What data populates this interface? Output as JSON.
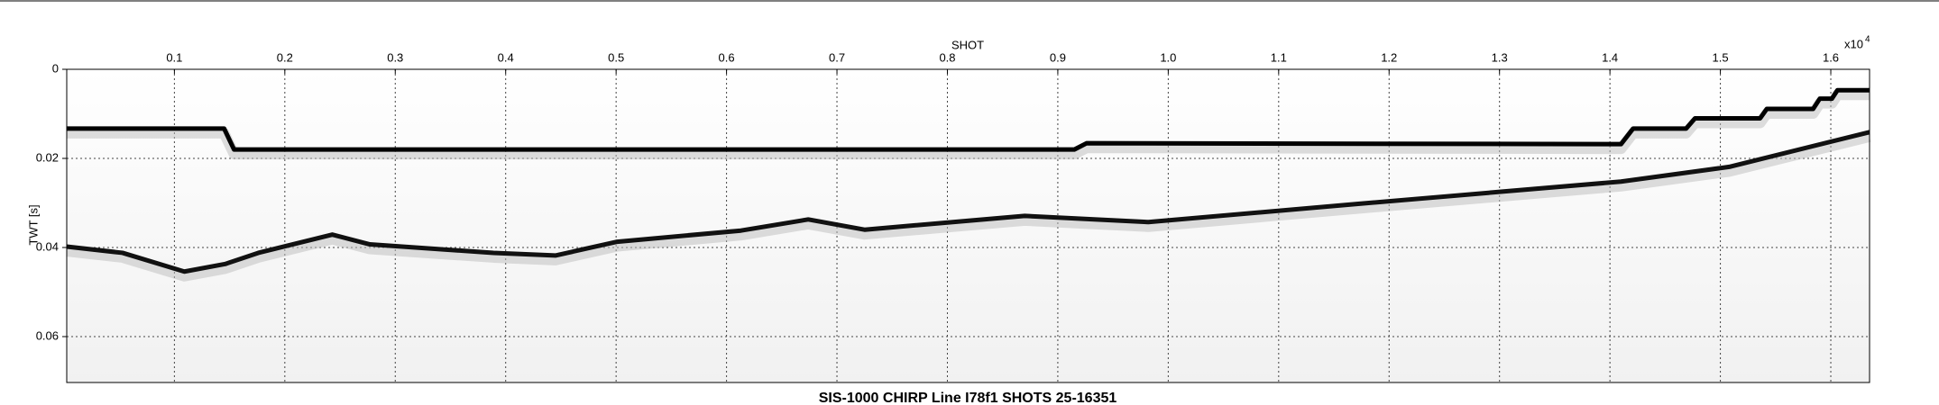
{
  "chart_data": {
    "type": "seismic",
    "title": "SIS-1000 CHIRP Line I78f1 SHOTS 25-16351",
    "x_label": "SHOT",
    "y_label": "TWT [s]",
    "x_multiplier": {
      "base": "x10",
      "exponent": "4"
    },
    "xlim": [
      0.0025,
      1.6351
    ],
    "ylim": [
      0,
      0.0703
    ],
    "y_inverted": true,
    "grid": true,
    "xticks": [
      0.1,
      0.2,
      0.3,
      0.4,
      0.5,
      0.6,
      0.7,
      0.8,
      0.9,
      {
        "value": 1,
        "label": "1.0"
      },
      1.1,
      1.2,
      1.3,
      1.4,
      1.5,
      1.6
    ],
    "yticks": [
      0,
      0.02,
      0.04,
      0.06
    ],
    "series": [
      {
        "color": "#000000",
        "x": [
          0.0025,
          0.145,
          0.154,
          0.915,
          0.926,
          1.41,
          1.421,
          1.469,
          1.477,
          1.536,
          1.542,
          1.584,
          1.59,
          1.601,
          1.606,
          1.6351
        ],
        "values": [
          0.0133,
          0.0133,
          0.018,
          0.018,
          0.0166,
          0.0168,
          0.0133,
          0.0133,
          0.011,
          0.011,
          0.0089,
          0.0089,
          0.0066,
          0.0066,
          0.0047,
          0.0047
        ]
      },
      {
        "color": "#111111",
        "x": [
          0.0025,
          0.053,
          0.109,
          0.146,
          0.176,
          0.243,
          0.277,
          0.389,
          0.445,
          0.501,
          0.613,
          0.674,
          0.725,
          0.87,
          0.982,
          1.172,
          1.41,
          1.508,
          1.6351
        ],
        "values": [
          0.0398,
          0.0412,
          0.0454,
          0.0437,
          0.0412,
          0.0371,
          0.0393,
          0.0412,
          0.0418,
          0.0387,
          0.0362,
          0.0337,
          0.036,
          0.0329,
          0.0343,
          0.0302,
          0.0252,
          0.0219,
          0.0141
        ]
      }
    ]
  }
}
